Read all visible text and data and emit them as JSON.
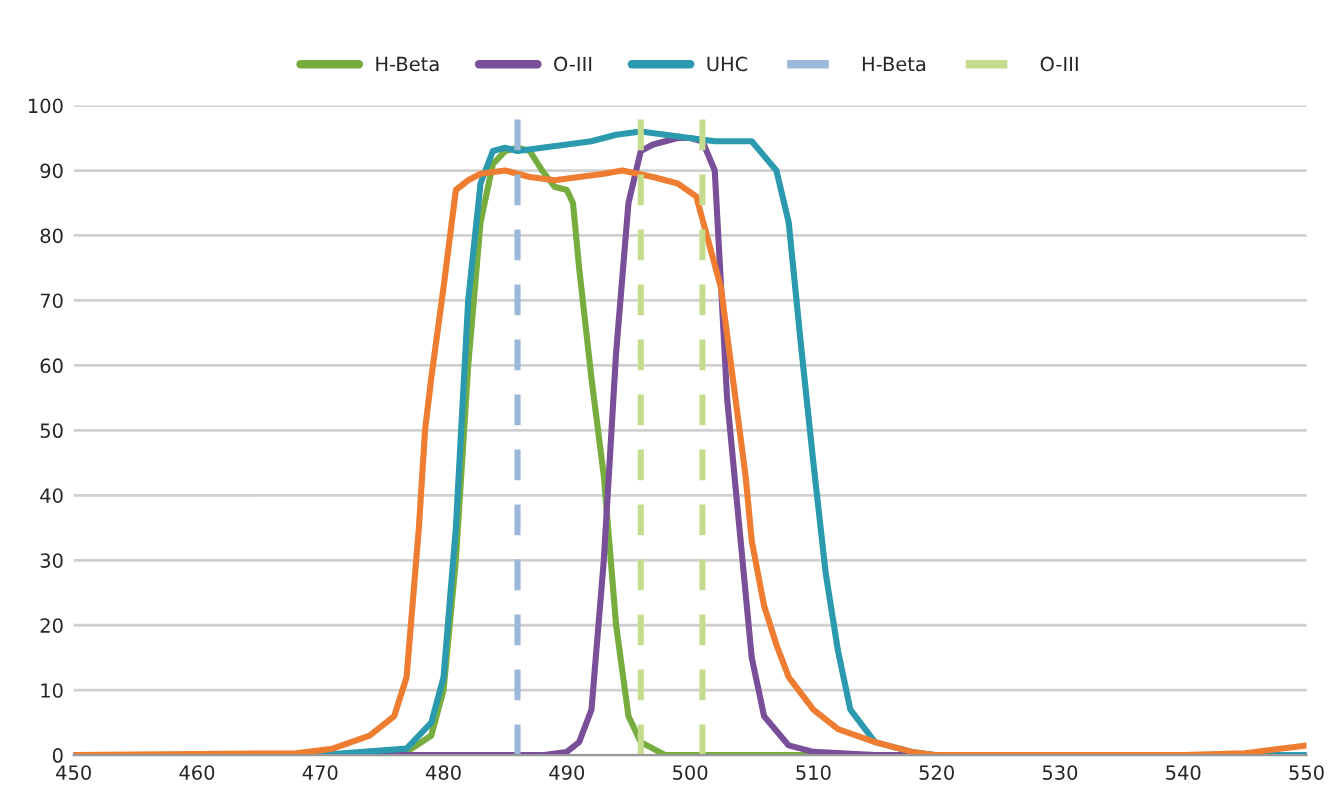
{
  "chart_data": {
    "type": "line",
    "xlim": [
      450,
      550
    ],
    "ylim": [
      0,
      100
    ],
    "xticks": [
      450,
      460,
      470,
      480,
      490,
      500,
      510,
      520,
      530,
      540,
      550
    ],
    "yticks": [
      0,
      10,
      20,
      30,
      40,
      50,
      60,
      70,
      80,
      90,
      100
    ],
    "grid": "y",
    "legend": "top",
    "marker": "none",
    "line_style": "solid",
    "series": [
      {
        "name": "H-Beta",
        "color": "#77ac3f",
        "x": [
          450,
          470,
          477,
          479,
          480,
          481,
          482,
          483,
          484,
          485,
          486,
          487,
          488,
          489,
          490,
          490.5,
          491,
          492,
          493,
          494,
          495,
          496,
          498,
          550
        ],
        "values": [
          0,
          0,
          0.5,
          3,
          10,
          30,
          60,
          82,
          91,
          93,
          93.5,
          93,
          90,
          87.5,
          87,
          85,
          75,
          58,
          43,
          20,
          6,
          2,
          0,
          0
        ]
      },
      {
        "name": "O-III",
        "color": "#7a4f9a",
        "x": [
          450,
          488,
          490,
          491,
          492,
          493,
          494,
          495,
          496,
          497,
          498,
          499,
          500,
          501,
          502,
          503,
          504,
          505,
          506,
          508,
          510,
          515,
          550
        ],
        "values": [
          0,
          0,
          0.5,
          2,
          7,
          30,
          62,
          85,
          93,
          94,
          94.5,
          95,
          95,
          94.5,
          90,
          55,
          35,
          15,
          6,
          1.5,
          0.5,
          0,
          0
        ]
      },
      {
        "name": "UHC",
        "color": "#2b9aaf",
        "x": [
          450,
          470,
          477,
          479,
          480,
          481,
          482,
          483,
          484,
          485,
          486,
          488,
          490,
          492,
          494,
          496,
          498,
          500,
          502,
          504,
          505,
          507,
          508,
          509,
          510,
          511,
          512,
          513,
          515,
          518,
          520,
          550
        ],
        "values": [
          0,
          0,
          1,
          5,
          12,
          35,
          70,
          88,
          93,
          93.5,
          93,
          93.5,
          94,
          94.5,
          95.5,
          96,
          95.5,
          95,
          94.5,
          94.5,
          94.5,
          90,
          82,
          63,
          45,
          28,
          16,
          7,
          2,
          0.5,
          0,
          0
        ]
      },
      {
        "color": "#ee7d31",
        "x": [
          450,
          468,
          471,
          474,
          476,
          477,
          478,
          478.5,
          479,
          480,
          481,
          482,
          483,
          485,
          487,
          489,
          491,
          493,
          494.5,
          497,
          499,
          500.5,
          502.5,
          504.5,
          505,
          506,
          507,
          508,
          510,
          512,
          515,
          518,
          520,
          540,
          545,
          550
        ],
        "values": [
          0,
          0.3,
          1,
          3,
          6,
          12,
          35,
          50,
          58,
          72,
          87,
          88.5,
          89.5,
          90,
          89,
          88.5,
          89,
          89.5,
          90,
          89,
          88,
          86,
          72,
          43,
          33,
          23,
          17,
          12,
          7,
          4,
          2,
          0.5,
          0,
          0,
          0.3,
          1.5
        ]
      }
    ],
    "ref_lines": [
      {
        "axis": "x",
        "value": 486,
        "label": "H-Beta",
        "color": "#9bb7da",
        "line_style": "dashed"
      },
      {
        "axis": "x",
        "value": 496,
        "label": "O-III",
        "color": "#c4dc8e",
        "line_style": "dashed"
      },
      {
        "axis": "x",
        "value": 501,
        "color": "#c4dc8e",
        "line_style": "dashed"
      }
    ]
  }
}
